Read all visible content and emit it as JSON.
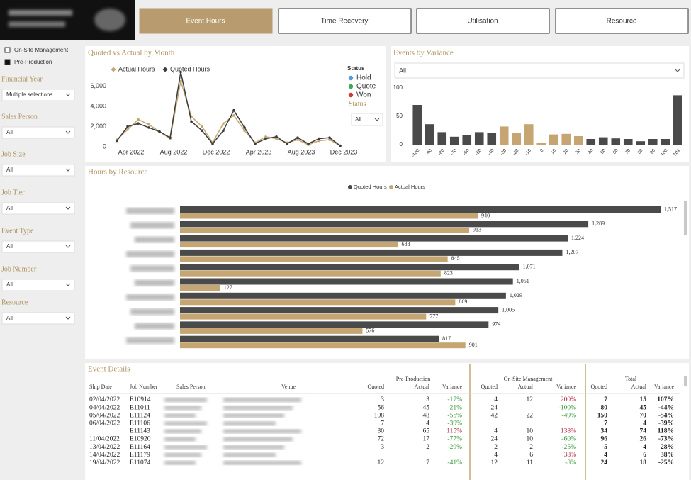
{
  "tabs": [
    "Event Hours",
    "Time Recovery",
    "Utilisation",
    "Resource"
  ],
  "active_tab": 0,
  "legend": [
    {
      "name": "On-Site Management",
      "color": "#ffffff"
    },
    {
      "name": "Pre-Production",
      "color": "#111111"
    }
  ],
  "filters": [
    {
      "label": "Financial Year",
      "value": "Multiple selections"
    },
    {
      "label": "Sales Person",
      "value": "All"
    },
    {
      "label": "Job Size",
      "value": "All"
    },
    {
      "label": "Job Tier",
      "value": "All"
    },
    {
      "label": "Event Type",
      "value": "All"
    },
    {
      "label": "Job Number",
      "value": "All"
    },
    {
      "label": "Resource",
      "value": "All"
    }
  ],
  "chart_data": [
    {
      "type": "line",
      "title": "Quoted vs Actual by Month",
      "categories": [
        null,
        "Apr 2022",
        null,
        null,
        null,
        "Aug 2022",
        null,
        null,
        null,
        "Dec 2022",
        null,
        null,
        null,
        "Apr 2023",
        null,
        null,
        null,
        "Aug 2023",
        null,
        null,
        null,
        "Dec 2023"
      ],
      "series": [
        {
          "name": "Actual Hours",
          "color": "#c5a673",
          "values": [
            700,
            1700,
            2700,
            2200,
            1500,
            800,
            6500,
            3000,
            2000,
            400,
            2300,
            3100,
            1600,
            400,
            1000,
            800,
            400,
            700,
            200,
            600,
            700,
            100
          ]
        },
        {
          "name": "Quoted Hours",
          "color": "#3c3c3c",
          "values": [
            600,
            2000,
            2300,
            1900,
            1500,
            900,
            7400,
            2500,
            1600,
            300,
            1600,
            3600,
            1900,
            300,
            800,
            1000,
            300,
            900,
            300,
            800,
            900,
            100
          ]
        }
      ],
      "ylim": [
        0,
        8000
      ],
      "yticks": [
        0,
        {
          "value": 2000,
          "label": "2,000"
        },
        {
          "value": 4000,
          "label": "4,000"
        },
        {
          "value": 6000,
          "label": "6,000"
        }
      ],
      "status_legend": {
        "title": "Status",
        "items": [
          {
            "name": "Hold",
            "color": "#5b9bd5"
          },
          {
            "name": "Quote",
            "color": "#3aaa5c"
          },
          {
            "name": "Won",
            "color": "#d03a3a"
          }
        ]
      },
      "status_filter": {
        "label": "Status",
        "value": "All"
      }
    },
    {
      "type": "bar",
      "title": "Events by Variance",
      "filter": "All",
      "categories": [
        -100,
        -90,
        -80,
        -70,
        -60,
        -50,
        -40,
        -30,
        -20,
        -10,
        0,
        10,
        20,
        30,
        40,
        50,
        60,
        70,
        80,
        90,
        100,
        101
      ],
      "values": [
        70,
        36,
        22,
        14,
        17,
        22,
        21,
        32,
        20,
        36,
        3,
        18,
        19,
        15,
        10,
        13,
        11,
        10,
        6,
        10,
        10,
        87
      ],
      "colors": [
        "#4a4a4a",
        "#4a4a4a",
        "#4a4a4a",
        "#4a4a4a",
        "#4a4a4a",
        "#4a4a4a",
        "#4a4a4a",
        "#c5a673",
        "#c5a673",
        "#c5a673",
        "#c5a673",
        "#c5a673",
        "#c5a673",
        "#c5a673",
        "#4a4a4a",
        "#4a4a4a",
        "#4a4a4a",
        "#4a4a4a",
        "#4a4a4a",
        "#4a4a4a",
        "#4a4a4a",
        "#4a4a4a"
      ],
      "ylim": [
        0,
        100
      ],
      "yticks": [
        0,
        50,
        100
      ]
    },
    {
      "type": "hbar",
      "title": "Hours by Resource",
      "categories": [
        null,
        null,
        null,
        null,
        null,
        null,
        null,
        null,
        null,
        null
      ],
      "series": [
        {
          "name": "Quoted Hours",
          "color": "#4a4a4a",
          "values": [
            1517,
            1289,
            1224,
            1207,
            1071,
            1051,
            1029,
            1005,
            974,
            817
          ],
          "value_labels": [
            "1,517",
            "1,289",
            "1,224",
            "1,207",
            "1,071",
            "1,051",
            "1,029",
            "1,005",
            "974",
            "817"
          ]
        },
        {
          "name": "Actual Hours",
          "color": "#c5a673",
          "values": [
            940,
            913,
            688,
            845,
            823,
            127,
            869,
            777,
            576,
            901
          ]
        }
      ]
    }
  ],
  "table": {
    "title": "Event Details",
    "groups": [
      "Pre-Production",
      "On-Site Management",
      "Total"
    ],
    "columns": [
      "Ship Date",
      "Job Number",
      "Sales Person",
      "Venue",
      "Quoted",
      "Actual",
      "Variance",
      "Quoted",
      "Actual",
      "Variance",
      "Quoted",
      "Actual",
      "Variance"
    ],
    "rows": [
      [
        "02/04/2022",
        "E10914",
        null,
        null,
        "3",
        "3",
        "-17%",
        "4",
        "12",
        "200%",
        "7",
        "15",
        "107%"
      ],
      [
        "04/04/2022",
        "E11011",
        null,
        null,
        "56",
        "45",
        "-21%",
        "24",
        null,
        "-100%",
        "80",
        "45",
        "-44%"
      ],
      [
        "05/04/2022",
        "E11124",
        null,
        null,
        "108",
        "48",
        "-55%",
        "42",
        "22",
        "-49%",
        "150",
        "70",
        "-54%"
      ],
      [
        "06/04/2022",
        "E11106",
        null,
        null,
        "7",
        "4",
        "-39%",
        null,
        null,
        null,
        "7",
        "4",
        "-39%"
      ],
      [
        null,
        "E11143",
        null,
        null,
        "30",
        "65",
        "115%",
        "4",
        "10",
        "138%",
        "34",
        "74",
        "118%"
      ],
      [
        "11/04/2022",
        "E10920",
        null,
        null,
        "72",
        "17",
        "-77%",
        "24",
        "10",
        "-60%",
        "96",
        "26",
        "-73%"
      ],
      [
        "13/04/2022",
        "E11164",
        null,
        null,
        "3",
        "2",
        "-29%",
        "2",
        "2",
        "-25%",
        "5",
        "4",
        "-28%"
      ],
      [
        "14/04/2022",
        "E11179",
        null,
        null,
        null,
        null,
        null,
        "4",
        "6",
        "38%",
        "4",
        "6",
        "38%"
      ],
      [
        "19/04/2022",
        "E11074",
        null,
        null,
        "12",
        "7",
        "-41%",
        "12",
        "11",
        "-8%",
        "24",
        "18",
        "-25%"
      ]
    ]
  }
}
